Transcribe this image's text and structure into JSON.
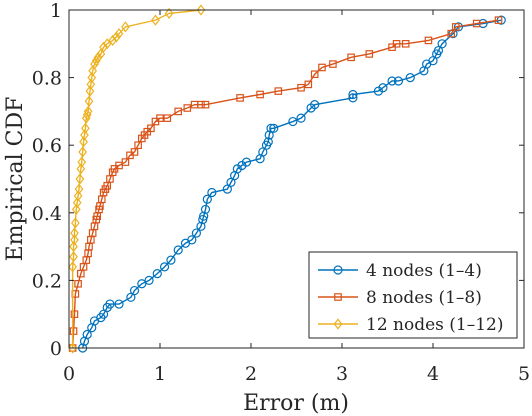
{
  "chart_data": {
    "type": "line",
    "xlabel": "Error (m)",
    "ylabel": "Empirical CDF",
    "xlim": [
      0,
      5
    ],
    "ylim": [
      0,
      1
    ],
    "xticks": [
      "0",
      "1",
      "2",
      "3",
      "4",
      "5"
    ],
    "yticks": [
      "0",
      "0.2",
      "0.4",
      "0.6",
      "0.8",
      "1"
    ],
    "grid": false,
    "legend_position": "bottom-right",
    "series": [
      {
        "name": "4 nodes (1–4)",
        "color": "#0072BD",
        "marker": "circle",
        "x": [
          0.15,
          0.17,
          0.2,
          0.25,
          0.28,
          0.35,
          0.38,
          0.42,
          0.45,
          0.55,
          0.68,
          0.72,
          0.8,
          0.88,
          0.97,
          1.05,
          1.12,
          1.2,
          1.28,
          1.35,
          1.4,
          1.45,
          1.47,
          1.48,
          1.5,
          1.52,
          1.57,
          1.74,
          1.78,
          1.82,
          1.85,
          1.9,
          1.95,
          2.1,
          2.13,
          2.17,
          2.19,
          2.2,
          2.22,
          2.25,
          2.46,
          2.55,
          2.66,
          2.7,
          3.12,
          3.12,
          3.4,
          3.45,
          3.55,
          3.62,
          3.75,
          3.9,
          3.93,
          4.0,
          4.04,
          4.06,
          4.1,
          4.22,
          4.28,
          4.55,
          4.75
        ],
        "y": [
          0.0,
          0.02,
          0.04,
          0.06,
          0.08,
          0.09,
          0.1,
          0.12,
          0.13,
          0.13,
          0.15,
          0.17,
          0.19,
          0.2,
          0.22,
          0.24,
          0.26,
          0.29,
          0.31,
          0.32,
          0.34,
          0.36,
          0.38,
          0.39,
          0.41,
          0.44,
          0.46,
          0.47,
          0.49,
          0.51,
          0.53,
          0.54,
          0.55,
          0.56,
          0.58,
          0.6,
          0.61,
          0.63,
          0.65,
          0.65,
          0.67,
          0.68,
          0.71,
          0.72,
          0.74,
          0.75,
          0.76,
          0.77,
          0.79,
          0.79,
          0.8,
          0.82,
          0.84,
          0.85,
          0.87,
          0.88,
          0.9,
          0.93,
          0.95,
          0.96,
          0.97
        ]
      },
      {
        "name": "8 nodes (1–8)",
        "color": "#D95319",
        "marker": "square",
        "x": [
          0.04,
          0.05,
          0.06,
          0.07,
          0.1,
          0.13,
          0.16,
          0.19,
          0.21,
          0.22,
          0.24,
          0.26,
          0.28,
          0.3,
          0.31,
          0.33,
          0.34,
          0.36,
          0.38,
          0.4,
          0.42,
          0.45,
          0.48,
          0.5,
          0.55,
          0.62,
          0.67,
          0.72,
          0.76,
          0.8,
          0.83,
          0.86,
          0.9,
          0.95,
          1.0,
          1.08,
          1.2,
          1.3,
          1.38,
          1.45,
          1.5,
          1.88,
          2.1,
          2.3,
          2.55,
          2.63,
          2.7,
          2.78,
          2.9,
          3.1,
          3.3,
          3.55,
          3.6,
          3.7,
          3.95,
          4.2,
          4.25,
          4.48,
          4.72
        ],
        "y": [
          0.0,
          0.05,
          0.1,
          0.16,
          0.19,
          0.22,
          0.24,
          0.26,
          0.28,
          0.3,
          0.32,
          0.34,
          0.36,
          0.38,
          0.39,
          0.41,
          0.42,
          0.44,
          0.46,
          0.47,
          0.48,
          0.5,
          0.52,
          0.53,
          0.54,
          0.55,
          0.57,
          0.58,
          0.6,
          0.62,
          0.63,
          0.64,
          0.65,
          0.67,
          0.68,
          0.68,
          0.7,
          0.71,
          0.72,
          0.72,
          0.72,
          0.74,
          0.75,
          0.76,
          0.77,
          0.78,
          0.81,
          0.83,
          0.84,
          0.86,
          0.87,
          0.89,
          0.9,
          0.9,
          0.91,
          0.93,
          0.95,
          0.96,
          0.97
        ]
      },
      {
        "name": "12 nodes (1–12)",
        "color": "#EDB120",
        "marker": "diamond",
        "x": [
          0.04,
          0.04,
          0.05,
          0.05,
          0.06,
          0.06,
          0.07,
          0.08,
          0.09,
          0.1,
          0.11,
          0.12,
          0.13,
          0.14,
          0.15,
          0.16,
          0.17,
          0.18,
          0.19,
          0.2,
          0.21,
          0.22,
          0.23,
          0.24,
          0.25,
          0.26,
          0.28,
          0.3,
          0.32,
          0.35,
          0.38,
          0.42,
          0.48,
          0.52,
          0.55,
          0.62,
          0.95,
          1.1,
          1.45
        ],
        "y": [
          0.0,
          0.24,
          0.27,
          0.3,
          0.32,
          0.34,
          0.37,
          0.41,
          0.43,
          0.45,
          0.47,
          0.5,
          0.53,
          0.55,
          0.58,
          0.61,
          0.63,
          0.65,
          0.68,
          0.69,
          0.7,
          0.73,
          0.76,
          0.78,
          0.8,
          0.82,
          0.84,
          0.85,
          0.86,
          0.87,
          0.89,
          0.9,
          0.91,
          0.92,
          0.93,
          0.95,
          0.97,
          0.99,
          1.0
        ]
      }
    ]
  }
}
